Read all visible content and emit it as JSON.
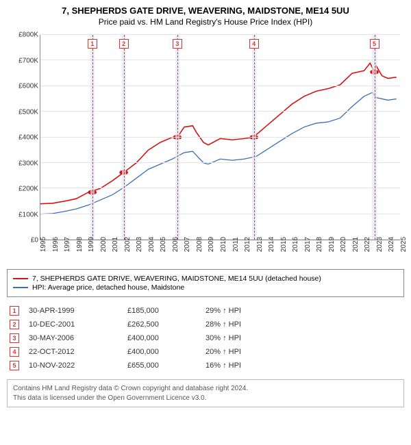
{
  "title": "7, SHEPHERDS GATE DRIVE, WEAVERING, MAIDSTONE, ME14 5UU",
  "subtitle": "Price paid vs. HM Land Registry's House Price Index (HPI)",
  "chart": {
    "type": "line",
    "background_color": "#ffffff",
    "grid_color": "#e5e5e5",
    "axis_fontsize": 10,
    "x": {
      "min": 1995,
      "max": 2025,
      "ticks": [
        1995,
        1996,
        1997,
        1998,
        1999,
        2000,
        2001,
        2002,
        2003,
        2004,
        2005,
        2006,
        2007,
        2008,
        2009,
        2010,
        2011,
        2012,
        2013,
        2014,
        2015,
        2016,
        2017,
        2018,
        2019,
        2020,
        2021,
        2022,
        2023,
        2024,
        2025
      ]
    },
    "y": {
      "min": 0,
      "max": 800000,
      "tick_step": 100000,
      "tick_labels": [
        "£0",
        "£100K",
        "£200K",
        "£300K",
        "£400K",
        "£500K",
        "£600K",
        "£700K",
        "£800K"
      ]
    },
    "series": [
      {
        "name": "7, SHEPHERDS GATE DRIVE, WEAVERING, MAIDSTONE, ME14 5UU (detached house)",
        "color": "#d31414",
        "line_width": 1.6,
        "points": [
          [
            1995,
            140000
          ],
          [
            1996,
            142000
          ],
          [
            1997,
            150000
          ],
          [
            1998,
            160000
          ],
          [
            1999,
            185000
          ],
          [
            2000,
            200000
          ],
          [
            2001,
            230000
          ],
          [
            2001.95,
            262500
          ],
          [
            2003,
            300000
          ],
          [
            2004,
            350000
          ],
          [
            2005,
            380000
          ],
          [
            2006,
            400000
          ],
          [
            2006.42,
            400000
          ],
          [
            2007,
            440000
          ],
          [
            2007.7,
            445000
          ],
          [
            2008,
            420000
          ],
          [
            2008.6,
            380000
          ],
          [
            2009,
            370000
          ],
          [
            2010,
            395000
          ],
          [
            2011,
            390000
          ],
          [
            2012,
            395000
          ],
          [
            2012.81,
            400000
          ],
          [
            2013,
            410000
          ],
          [
            2014,
            450000
          ],
          [
            2015,
            490000
          ],
          [
            2016,
            530000
          ],
          [
            2017,
            560000
          ],
          [
            2018,
            580000
          ],
          [
            2019,
            590000
          ],
          [
            2020,
            605000
          ],
          [
            2021,
            650000
          ],
          [
            2022,
            660000
          ],
          [
            2022.5,
            690000
          ],
          [
            2022.86,
            655000
          ],
          [
            2023,
            680000
          ],
          [
            2023.5,
            640000
          ],
          [
            2024,
            630000
          ],
          [
            2024.7,
            635000
          ]
        ]
      },
      {
        "name": "HPI: Average price, detached house, Maidstone",
        "color": "#3a6fb7",
        "line_width": 1.3,
        "points": [
          [
            1995,
            100000
          ],
          [
            1996,
            102000
          ],
          [
            1997,
            110000
          ],
          [
            1998,
            120000
          ],
          [
            1999,
            135000
          ],
          [
            2000,
            155000
          ],
          [
            2001,
            175000
          ],
          [
            2002,
            205000
          ],
          [
            2003,
            240000
          ],
          [
            2004,
            275000
          ],
          [
            2005,
            295000
          ],
          [
            2006,
            315000
          ],
          [
            2007,
            340000
          ],
          [
            2007.7,
            345000
          ],
          [
            2008,
            330000
          ],
          [
            2008.6,
            300000
          ],
          [
            2009,
            295000
          ],
          [
            2010,
            315000
          ],
          [
            2011,
            310000
          ],
          [
            2012,
            315000
          ],
          [
            2013,
            325000
          ],
          [
            2014,
            355000
          ],
          [
            2015,
            385000
          ],
          [
            2016,
            415000
          ],
          [
            2017,
            440000
          ],
          [
            2018,
            455000
          ],
          [
            2019,
            460000
          ],
          [
            2020,
            475000
          ],
          [
            2021,
            520000
          ],
          [
            2022,
            560000
          ],
          [
            2022.7,
            575000
          ],
          [
            2023,
            555000
          ],
          [
            2024,
            545000
          ],
          [
            2024.7,
            550000
          ]
        ]
      }
    ],
    "event_bands": [
      {
        "x": 1999.33,
        "width_years": 0.35
      },
      {
        "x": 2001.95,
        "width_years": 0.35
      },
      {
        "x": 2006.42,
        "width_years": 0.35
      },
      {
        "x": 2012.81,
        "width_years": 0.35
      },
      {
        "x": 2022.86,
        "width_years": 0.35
      }
    ],
    "event_band_color": "#dbe9f7",
    "event_dash_color": "#d33333",
    "sale_markers": [
      {
        "n": "1",
        "x": 1999.33,
        "y": 185000
      },
      {
        "n": "2",
        "x": 2001.95,
        "y": 262500
      },
      {
        "n": "3",
        "x": 2006.42,
        "y": 400000
      },
      {
        "n": "4",
        "x": 2012.81,
        "y": 400000
      },
      {
        "n": "5",
        "x": 2022.86,
        "y": 655000
      }
    ],
    "marker_radius": 3.5
  },
  "legend": [
    {
      "color": "#d31414",
      "label": "7, SHEPHERDS GATE DRIVE, WEAVERING, MAIDSTONE, ME14 5UU (detached house)"
    },
    {
      "color": "#3a6fb7",
      "label": "HPI: Average price, detached house, Maidstone"
    }
  ],
  "sales": [
    {
      "n": "1",
      "date": "30-APR-1999",
      "price": "£185,000",
      "delta": "29% ↑ HPI"
    },
    {
      "n": "2",
      "date": "10-DEC-2001",
      "price": "£262,500",
      "delta": "28% ↑ HPI"
    },
    {
      "n": "3",
      "date": "30-MAY-2006",
      "price": "£400,000",
      "delta": "30% ↑ HPI"
    },
    {
      "n": "4",
      "date": "22-OCT-2012",
      "price": "£400,000",
      "delta": "20% ↑ HPI"
    },
    {
      "n": "5",
      "date": "10-NOV-2022",
      "price": "£655,000",
      "delta": "16% ↑ HPI"
    }
  ],
  "footnote_line1": "Contains HM Land Registry data © Crown copyright and database right 2024.",
  "footnote_line2": "This data is licensed under the Open Government Licence v3.0."
}
